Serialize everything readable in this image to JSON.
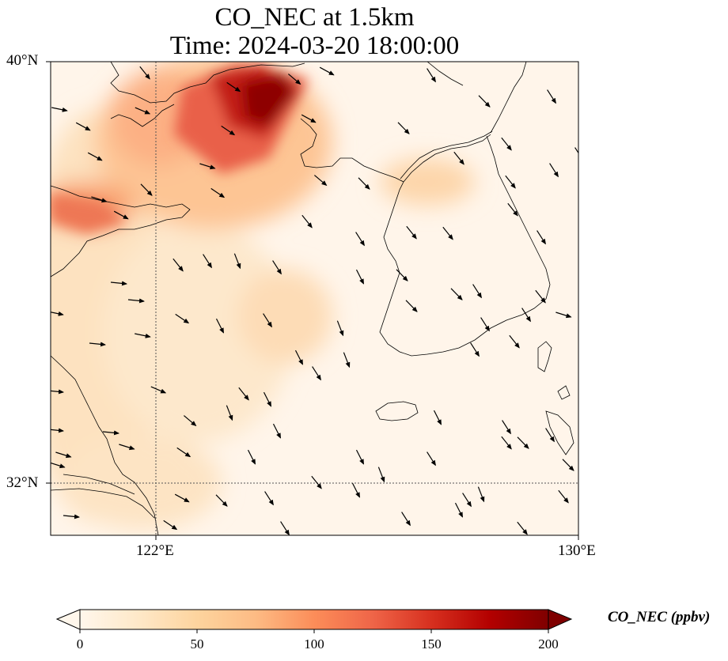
{
  "title_line1": "CO_NEC at 1.5km",
  "title_line2": "Time: 2024-03-20 18:00:00",
  "lat_ticks": [
    "40°N",
    "32°N"
  ],
  "lon_ticks": [
    "122°E",
    "130°E"
  ],
  "colorbar": {
    "label": "CO_NEC (ppbv)",
    "ticks": [
      "0",
      "50",
      "100",
      "150",
      "200"
    ],
    "range": [
      0,
      200
    ],
    "extend": "both",
    "colormap": "OrRd",
    "colors": [
      "#fff7ec",
      "#fee8c8",
      "#fdd49e",
      "#fdbb84",
      "#fc8d59",
      "#ef6548",
      "#d7301f",
      "#b30000",
      "#7f0000"
    ]
  },
  "map_extent": {
    "lon": [
      120,
      130
    ],
    "lat": [
      31,
      40
    ]
  },
  "gridlines": {
    "lon": [
      122
    ],
    "lat": [
      32
    ],
    "style": "dotted"
  }
}
